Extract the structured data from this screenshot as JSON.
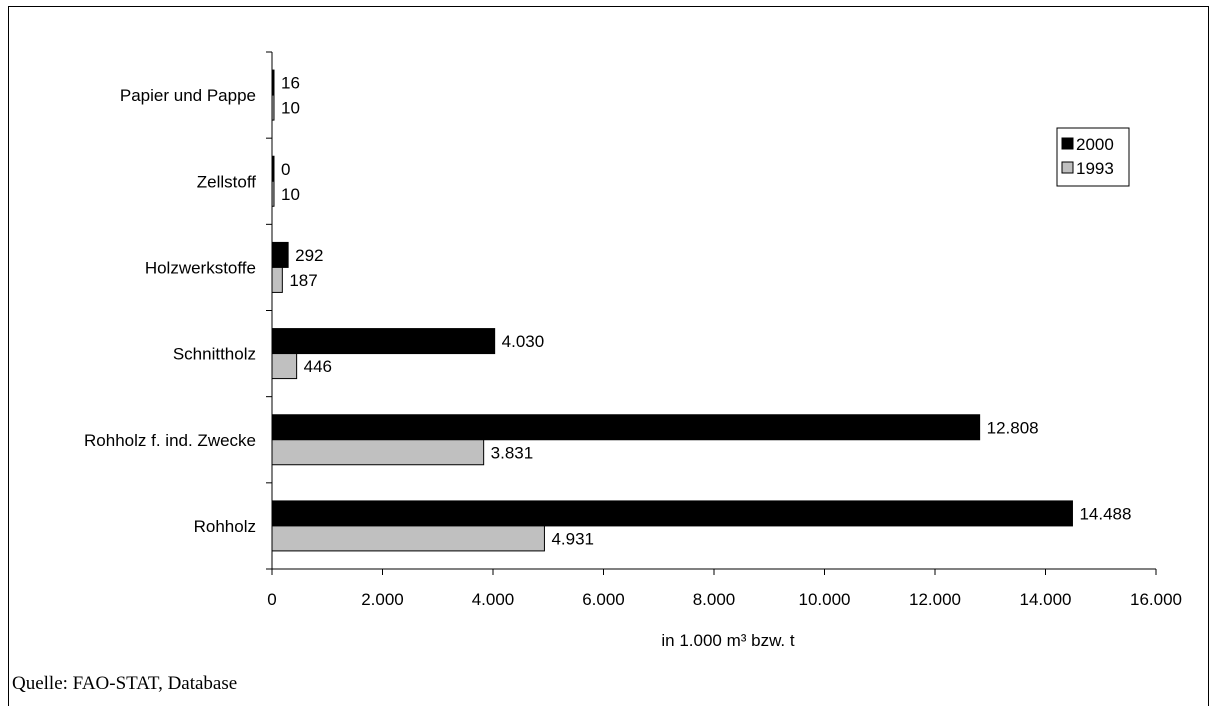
{
  "chart_data": {
    "type": "bar",
    "orientation": "horizontal",
    "categories": [
      "Papier und Pappe",
      "Zellstoff",
      "Holzwerkstoffe",
      "Schnittholz",
      "Rohholz f. ind. Zwecke",
      "Rohholz"
    ],
    "series": [
      {
        "name": "2000",
        "color": "#000000",
        "values": [
          16,
          0,
          292,
          4030,
          12808,
          14488
        ],
        "labels": [
          "16",
          "0",
          "292",
          "4.030",
          "12.808",
          "14.488"
        ]
      },
      {
        "name": "1993",
        "color": "#c0c0c0",
        "values": [
          10,
          10,
          187,
          446,
          3831,
          4931
        ],
        "labels": [
          "10",
          "10",
          "187",
          "446",
          "3.831",
          "4.931"
        ]
      }
    ],
    "xlabel": "in 1.000 m³ bzw. t",
    "xlim": [
      0,
      16000
    ],
    "xticks": [
      0,
      2000,
      4000,
      6000,
      8000,
      10000,
      12000,
      14000,
      16000
    ],
    "xtick_labels": [
      "0",
      "2.000",
      "4.000",
      "6.000",
      "8.000",
      "10.000",
      "12.000",
      "14.000",
      "16.000"
    ],
    "grid": false,
    "legend_position": "top-right"
  },
  "source_text": "Quelle: FAO-STAT, Database"
}
